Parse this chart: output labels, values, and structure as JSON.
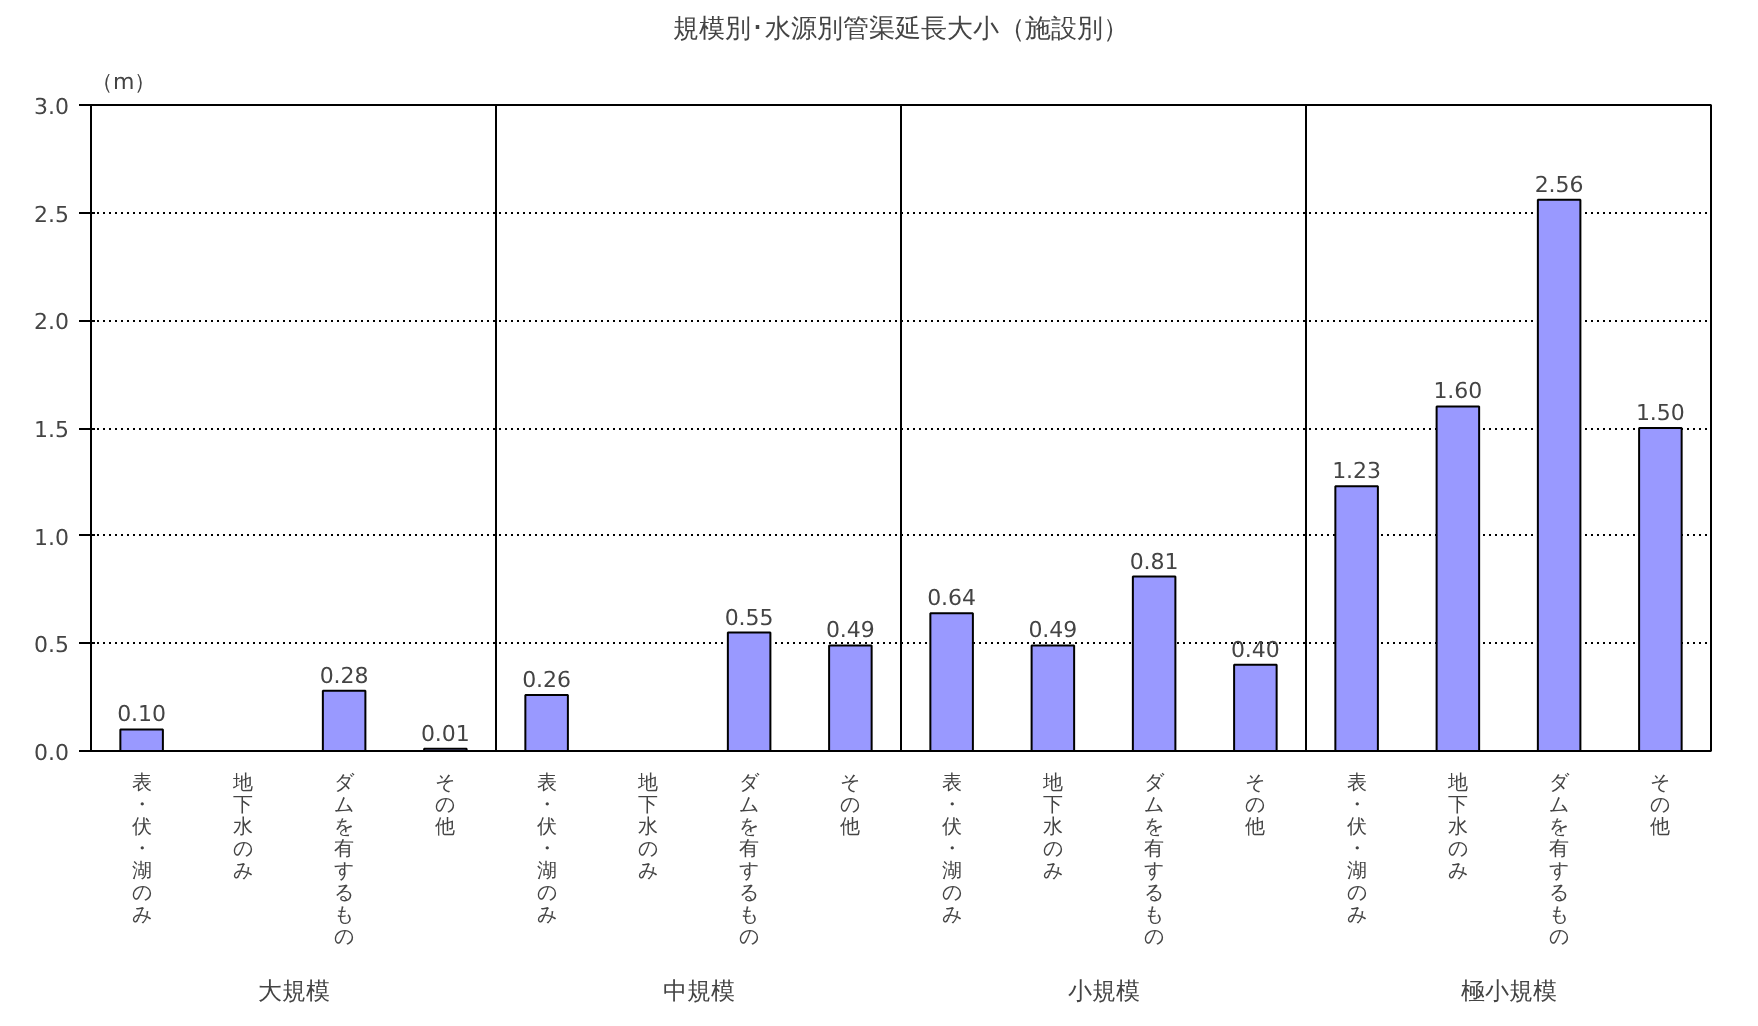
{
  "chart_data": {
    "type": "bar",
    "title": "規模別･水源別管渠延長大小（施設別）",
    "ylabel": "（m）",
    "categories": [
      "表・伏・湖のみ",
      "地下水のみ",
      "ダムを有するもの",
      "その他",
      "表・伏・湖のみ",
      "地下水のみ",
      "ダムを有するもの",
      "その他",
      "表・伏・湖のみ",
      "地下水のみ",
      "ダムを有するもの",
      "その他",
      "表・伏・湖のみ",
      "地下水のみ",
      "ダムを有するもの",
      "その他"
    ],
    "values": [
      0.1,
      null,
      0.28,
      0.01,
      0.26,
      null,
      0.55,
      0.49,
      0.64,
      0.49,
      0.81,
      0.4,
      1.23,
      1.6,
      2.56,
      1.5
    ],
    "color": "#9999ff",
    "annotations": [
      "大規模",
      "中規模",
      "小規模",
      "極小規模"
    ],
    "ylim": [
      0,
      3.0
    ],
    "yticks": [
      {
        "value": 0,
        "label": "0.0"
      },
      {
        "value": 0.5,
        "label": "0.5"
      },
      {
        "value": 1.0,
        "label": "1.0"
      },
      {
        "value": 1.5,
        "label": "1.5"
      },
      {
        "value": 2.0,
        "label": "2.0"
      },
      {
        "value": 2.5,
        "label": "2.5"
      },
      {
        "value": 3.0,
        "label": "3.0"
      }
    ],
    "value_labels": [
      "0.10",
      null,
      "0.28",
      "0.01",
      "0.26",
      null,
      "0.55",
      "0.49",
      "0.64",
      "0.49",
      "0.81",
      "0.40",
      "1.23",
      "1.60",
      "2.56",
      "1.50"
    ],
    "grid": "y"
  }
}
